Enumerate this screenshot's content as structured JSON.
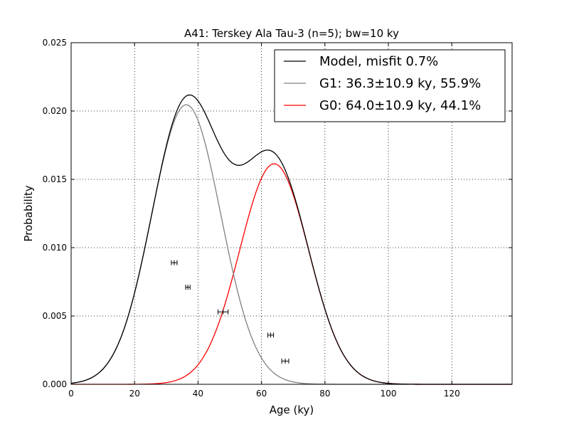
{
  "chart_data": {
    "type": "line",
    "title": "A41: Terskey Ala Tau-3 (n=5); bw=10 ky",
    "xlabel": "Age (ky)",
    "ylabel": "Probability",
    "xlim": [
      0,
      139
    ],
    "ylim": [
      0,
      0.025
    ],
    "xticks": [
      0,
      20,
      40,
      60,
      80,
      100,
      120
    ],
    "yticks": [
      0.0,
      0.005,
      0.01,
      0.015,
      0.02,
      0.025
    ],
    "xtick_labels": [
      "0",
      "20",
      "40",
      "60",
      "80",
      "100",
      "120"
    ],
    "ytick_labels": [
      "0.000",
      "0.005",
      "0.010",
      "0.015",
      "0.020",
      "0.025"
    ],
    "grid": true,
    "legend_position": "top-right",
    "series": [
      {
        "name": "Model, misfit 0.7%",
        "color": "#000000",
        "kind": "sum"
      },
      {
        "name": "G1: 36.3±10.9 ky, 55.9%",
        "color": "#808080",
        "mean": 36.3,
        "sigma": 10.9,
        "weight": 0.559
      },
      {
        "name": "G0: 64.0±10.9 ky, 44.1%",
        "color": "#ff0000",
        "mean": 64.0,
        "sigma": 10.9,
        "weight": 0.441
      }
    ],
    "samples": [
      {
        "age": 32.5,
        "err": 0.9,
        "y": 0.0089
      },
      {
        "age": 36.8,
        "err": 0.7,
        "y": 0.0071
      },
      {
        "age": 47.9,
        "err": 1.6,
        "y": 0.0053
      },
      {
        "age": 62.9,
        "err": 0.9,
        "y": 0.0036
      },
      {
        "age": 67.5,
        "err": 1.1,
        "y": 0.0017
      }
    ]
  }
}
